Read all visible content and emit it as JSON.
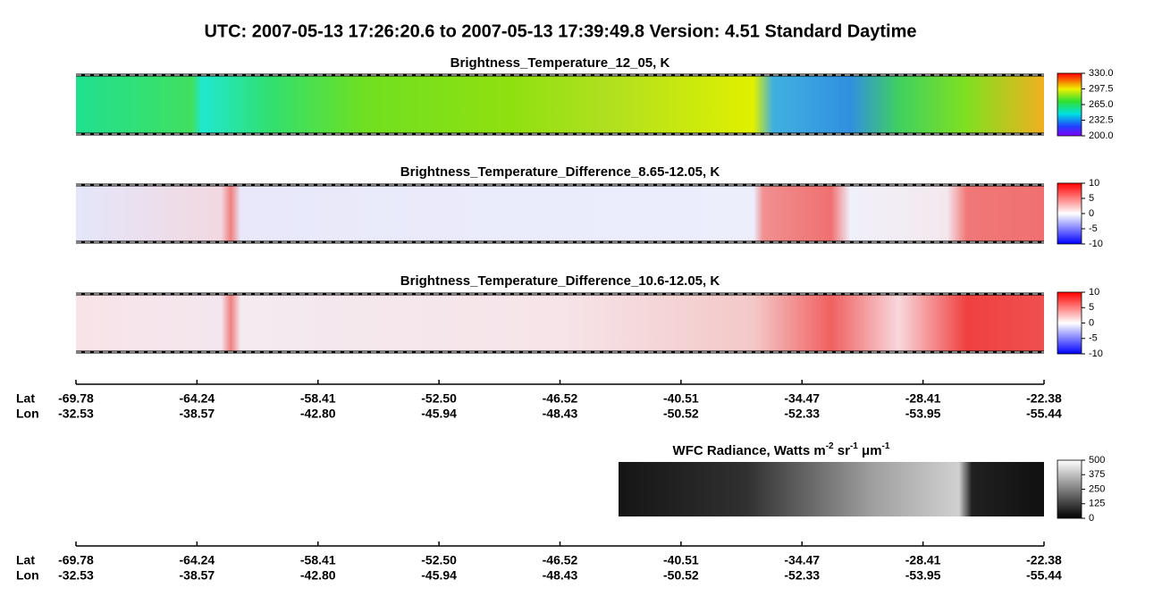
{
  "header": {
    "title": "UTC:  2007-05-13   17:26:20.6  to  2007-05-13   17:39:49.8    Version: 4.51  Standard Daytime"
  },
  "panels": [
    {
      "title": "Brightness_Temperature_12_05, K",
      "colorbar": [
        "330.0",
        "297.5",
        "265.0",
        "232.5",
        "200.0"
      ]
    },
    {
      "title": "Brightness_Temperature_Difference_8.65-12.05, K",
      "colorbar": [
        "10",
        "5",
        "0",
        "-5",
        "-10"
      ]
    },
    {
      "title": "Brightness_Temperature_Difference_10.6-12.05, K",
      "colorbar": [
        "10",
        "5",
        "0",
        "-5",
        "-10"
      ]
    },
    {
      "title_parts": [
        "WFC Radiance, Watts m",
        "-2",
        " sr",
        "-1",
        " μm",
        "-1"
      ],
      "colorbar": [
        "500",
        "375",
        "250",
        "125",
        "0"
      ]
    }
  ],
  "axes": [
    {
      "lat_label": "Lat",
      "lon_label": "Lon",
      "lat": [
        "-69.78",
        "-64.24",
        "-58.41",
        "-52.50",
        "-46.52",
        "-40.51",
        "-34.47",
        "-28.41",
        "-22.38"
      ],
      "lon": [
        "-32.53",
        "-38.57",
        "-42.80",
        "-45.94",
        "-48.43",
        "-50.52",
        "-52.33",
        "-53.95",
        "-55.44"
      ]
    },
    {
      "lat_label": "Lat",
      "lon_label": "Lon",
      "lat": [
        "-69.78",
        "-64.24",
        "-58.41",
        "-52.50",
        "-46.52",
        "-40.51",
        "-34.47",
        "-28.41",
        "-22.38"
      ],
      "lon": [
        "-32.53",
        "-38.57",
        "-42.80",
        "-45.94",
        "-48.43",
        "-50.52",
        "-52.33",
        "-53.95",
        "-55.44"
      ]
    }
  ]
}
